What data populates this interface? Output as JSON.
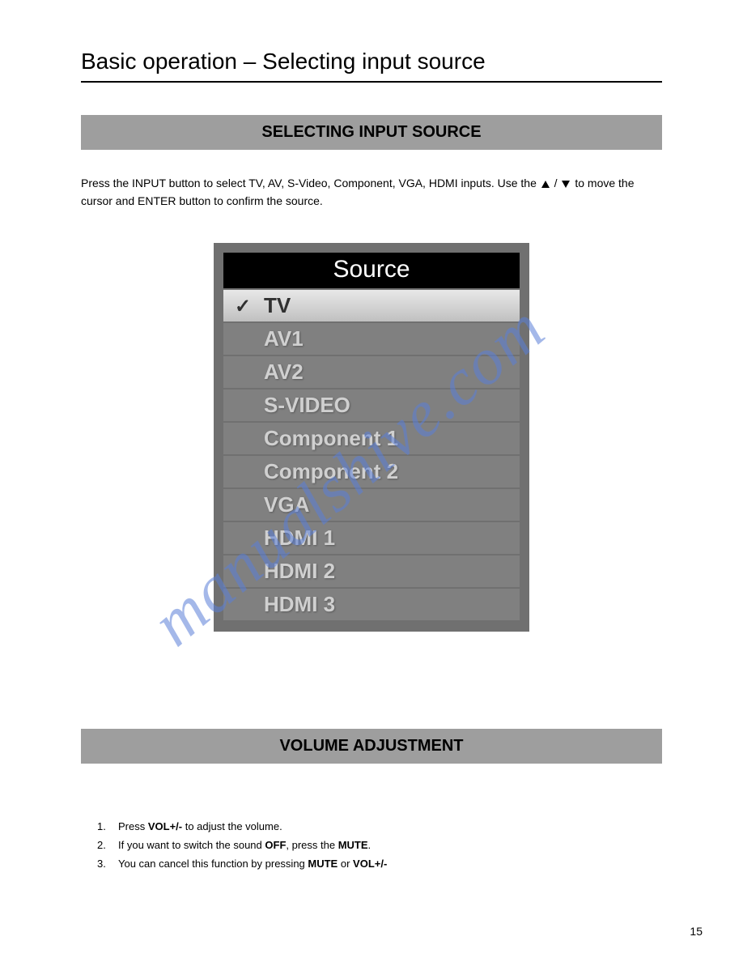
{
  "page": {
    "title": "Basic operation – Selecting input source",
    "number": "15"
  },
  "section1": {
    "header": "SELECTING INPUT SOURCE",
    "body_pre": "Press the INPUT button to select TV, AV, S-Video, Component, VGA, HDMI inputs. Use the ",
    "body_mid": " / ",
    "body_post": " to move the cursor and ENTER button to confirm the source."
  },
  "source_menu": {
    "title": "Source",
    "items": [
      {
        "label": "TV",
        "selected": true
      },
      {
        "label": "AV1",
        "selected": false
      },
      {
        "label": "AV2",
        "selected": false
      },
      {
        "label": "S-VIDEO",
        "selected": false
      },
      {
        "label": "Component 1",
        "selected": false
      },
      {
        "label": "Component 2",
        "selected": false
      },
      {
        "label": "VGA",
        "selected": false
      },
      {
        "label": "HDMI 1",
        "selected": false
      },
      {
        "label": "HDMI 2",
        "selected": false
      },
      {
        "label": "HDMI 3",
        "selected": false
      }
    ]
  },
  "section2": {
    "header": "VOLUME ADJUSTMENT",
    "list": [
      {
        "n": "1.",
        "pre": "Press ",
        "b1": "VOL+/-",
        "post1": " to adjust the volume.",
        "b2": "",
        "post2": ""
      },
      {
        "n": "2.",
        "pre": "If you want to switch the sound ",
        "b1": "OFF",
        "post1": ", press the ",
        "b2": "MUTE",
        "post2": "."
      },
      {
        "n": "3.",
        "pre": "You can cancel this function by pressing ",
        "b1": "MUTE",
        "post1": " or ",
        "b2": "VOL+/-",
        "post2": ""
      }
    ]
  },
  "watermark": "manualshive.com",
  "colors": {
    "section_header_bg": "#9e9e9e",
    "menu_border": "#707070",
    "menu_item_bg": "#808080",
    "menu_item_fg": "#d0d0d0",
    "menu_selected_fg": "#303030",
    "watermark_color": "#5a7fd8"
  }
}
